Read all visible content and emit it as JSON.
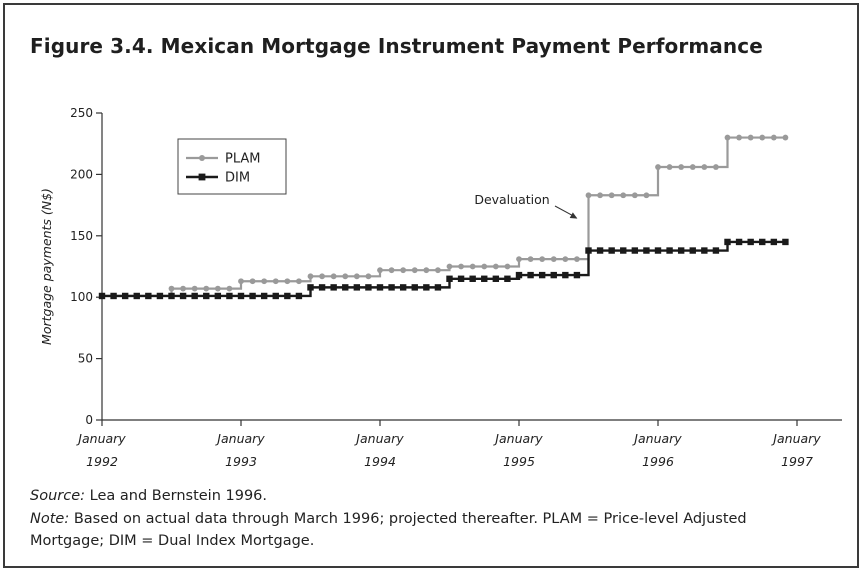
{
  "figure": {
    "title": "Figure 3.4. Mexican Mortgage Instrument Payment Performance",
    "source_label": "Source:",
    "source_text": " Lea and Bernstein 1996.",
    "note_label": "Note:",
    "note_line1": " Based on actual data through March 1996; projected thereafter. PLAM = Price-level Adjusted",
    "note_line2": "Mortgage; DIM = Dual Index Mortgage."
  },
  "chart_data": {
    "type": "line",
    "title": "",
    "ylabel": "Mortgage payments (N$)",
    "xlabel": "",
    "ylim": [
      0,
      250
    ],
    "xlim": [
      1992,
      1997
    ],
    "yticks": [
      0,
      50,
      100,
      150,
      200,
      250
    ],
    "ytick_labels": [
      "0",
      "50",
      "100",
      "150",
      "200",
      "250"
    ],
    "xticks": [
      {
        "x": 1992,
        "line1": "January",
        "line2": "1992"
      },
      {
        "x": 1993,
        "line1": "January",
        "line2": "1993"
      },
      {
        "x": 1994,
        "line1": "January",
        "line2": "1994"
      },
      {
        "x": 1995,
        "line1": "January",
        "line2": "1995"
      },
      {
        "x": 1996,
        "line1": "January",
        "line2": "1996"
      },
      {
        "x": 1997,
        "line1": "January",
        "line2": "1997"
      }
    ],
    "legend": {
      "position": "top-left"
    },
    "annotation": {
      "text": "Devaluation",
      "x": 1995.42,
      "y": 132
    },
    "series": [
      {
        "name": "PLAM",
        "color": "#9a9a9a",
        "marker": "circle",
        "steps": [
          {
            "from": 1992.0,
            "to": 1992.42,
            "value": 101
          },
          {
            "from": 1992.5,
            "to": 1992.92,
            "value": 107
          },
          {
            "from": 1993.0,
            "to": 1993.42,
            "value": 113
          },
          {
            "from": 1993.5,
            "to": 1993.92,
            "value": 117
          },
          {
            "from": 1994.0,
            "to": 1994.42,
            "value": 122
          },
          {
            "from": 1994.5,
            "to": 1994.92,
            "value": 125
          },
          {
            "from": 1995.0,
            "to": 1995.42,
            "value": 131
          },
          {
            "from": 1995.5,
            "to": 1995.92,
            "value": 183
          },
          {
            "from": 1996.0,
            "to": 1996.42,
            "value": 206
          },
          {
            "from": 1996.5,
            "to": 1996.92,
            "value": 230
          }
        ]
      },
      {
        "name": "DIM",
        "color": "#1a1a1a",
        "marker": "square",
        "steps": [
          {
            "from": 1992.0,
            "to": 1993.42,
            "value": 101
          },
          {
            "from": 1993.5,
            "to": 1994.42,
            "value": 108
          },
          {
            "from": 1994.5,
            "to": 1994.92,
            "value": 115
          },
          {
            "from": 1995.0,
            "to": 1995.42,
            "value": 118
          },
          {
            "from": 1995.5,
            "to": 1996.42,
            "value": 138
          },
          {
            "from": 1996.5,
            "to": 1996.92,
            "value": 145
          }
        ]
      }
    ]
  }
}
